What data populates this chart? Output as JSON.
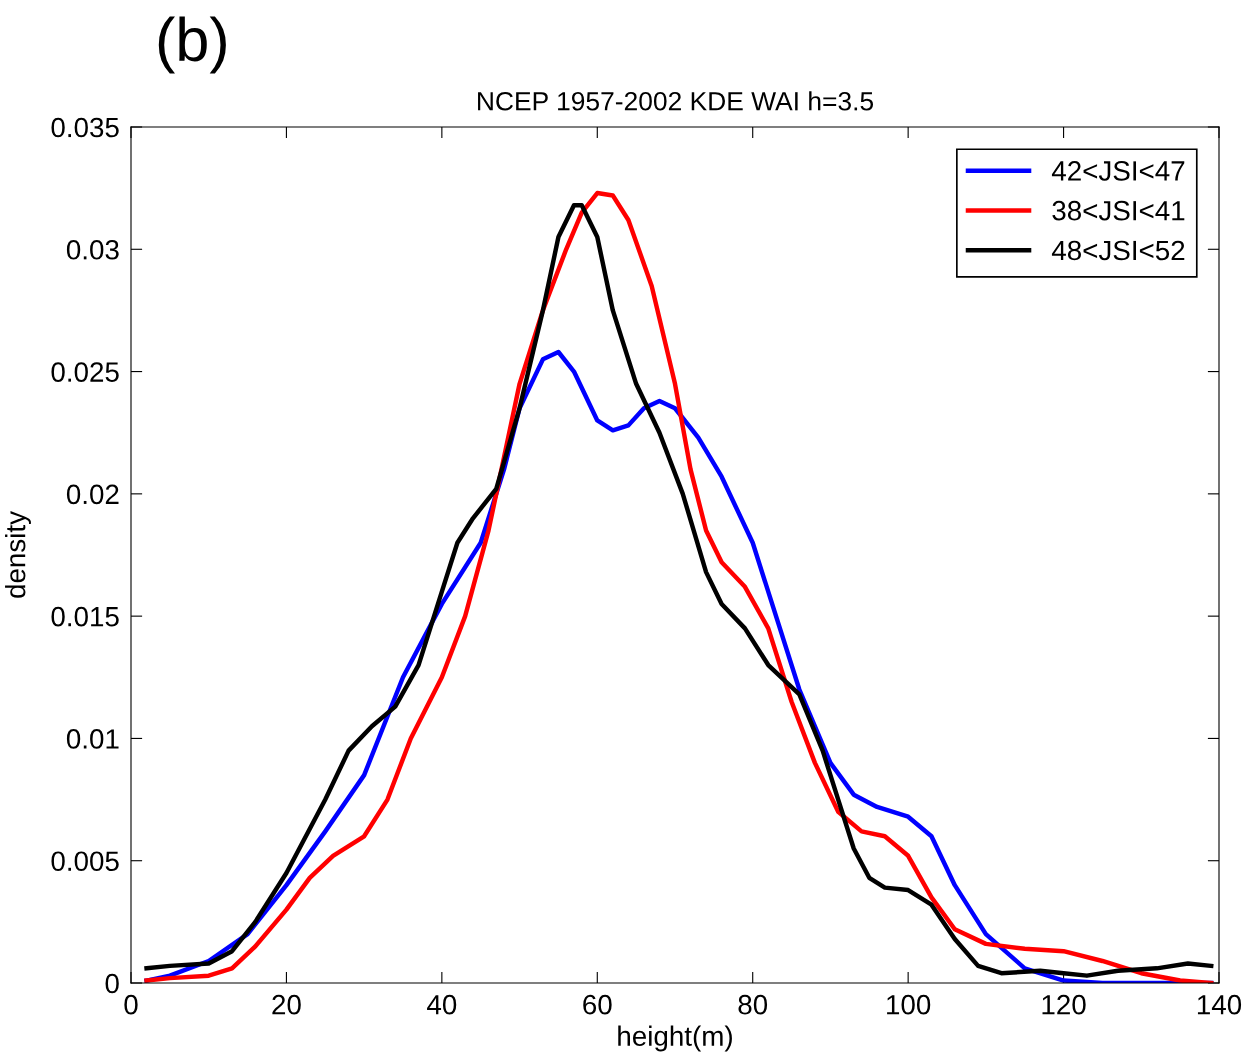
{
  "chart_data": {
    "type": "line",
    "title": "NCEP 1957-2002 KDE WAI h=3.5",
    "xlabel": "height(m)",
    "ylabel": "density",
    "annotations": [
      "(b)"
    ],
    "xlim": [
      0,
      140
    ],
    "xticks": [
      0,
      20,
      40,
      60,
      80,
      100,
      120,
      140
    ],
    "ylim": [
      0,
      0.035
    ],
    "yticks": [
      0,
      0.005,
      0.01,
      0.015,
      0.02,
      0.025,
      0.03,
      0.035
    ],
    "grid": false,
    "legend": "top right",
    "marker": "none",
    "line_style": "solid",
    "series": [
      {
        "name": "42<JSI<47",
        "color": "#0000ff",
        "x": [
          2,
          5,
          10,
          15,
          20,
          25,
          30,
          35,
          40,
          45,
          48,
          50,
          53,
          55,
          57,
          60,
          62,
          64,
          66,
          68,
          70,
          73,
          76,
          80,
          83,
          86,
          90,
          93,
          96,
          100,
          103,
          106,
          110,
          115,
          120,
          125,
          139
        ],
        "values": [
          0.0001,
          0.0003,
          0.0009,
          0.002,
          0.004,
          0.0062,
          0.0085,
          0.0125,
          0.0155,
          0.018,
          0.021,
          0.0235,
          0.0255,
          0.0258,
          0.025,
          0.023,
          0.0226,
          0.0228,
          0.0235,
          0.0238,
          0.0235,
          0.0223,
          0.0207,
          0.018,
          0.015,
          0.012,
          0.009,
          0.0077,
          0.0072,
          0.0068,
          0.006,
          0.004,
          0.002,
          0.0006,
          0.0001,
          0.0,
          0.0
        ]
      },
      {
        "name": "38<JSI<41",
        "color": "#ff0000",
        "x": [
          2,
          5,
          10,
          13,
          16,
          20,
          23,
          26,
          30,
          33,
          36,
          40,
          43,
          46,
          48,
          50,
          53,
          56,
          58,
          60,
          62,
          64,
          67,
          70,
          72,
          74,
          76,
          79,
          82,
          85,
          88,
          91,
          94,
          97,
          100,
          103,
          106,
          110,
          115,
          120,
          125,
          130,
          135,
          139
        ],
        "values": [
          0.0001,
          0.0002,
          0.0003,
          0.0006,
          0.0015,
          0.003,
          0.0043,
          0.0052,
          0.006,
          0.0075,
          0.01,
          0.0125,
          0.015,
          0.0185,
          0.0215,
          0.0245,
          0.0275,
          0.03,
          0.0315,
          0.0323,
          0.0322,
          0.0312,
          0.0285,
          0.0245,
          0.021,
          0.0185,
          0.0172,
          0.0162,
          0.0145,
          0.0115,
          0.009,
          0.007,
          0.0062,
          0.006,
          0.0052,
          0.0035,
          0.0022,
          0.0016,
          0.0014,
          0.0013,
          0.0009,
          0.0004,
          0.0001,
          0.0
        ]
      },
      {
        "name": "48<JSI<52",
        "color": "#000000",
        "x": [
          2,
          5,
          10,
          13,
          16,
          20,
          25,
          28,
          31,
          34,
          37,
          40,
          42,
          44,
          47,
          50,
          53,
          55,
          57,
          58,
          60,
          62,
          65,
          68,
          71,
          74,
          76,
          79,
          82,
          86,
          89,
          91,
          93,
          95,
          97,
          100,
          103,
          106,
          109,
          112,
          117,
          120,
          123,
          127,
          132,
          136,
          139
        ],
        "values": [
          0.0006,
          0.0007,
          0.0008,
          0.0013,
          0.0025,
          0.0045,
          0.0075,
          0.0095,
          0.0105,
          0.0113,
          0.013,
          0.016,
          0.018,
          0.019,
          0.0202,
          0.0235,
          0.0275,
          0.0305,
          0.0318,
          0.0318,
          0.0305,
          0.0275,
          0.0245,
          0.0225,
          0.02,
          0.0168,
          0.0155,
          0.0145,
          0.013,
          0.0118,
          0.0095,
          0.0075,
          0.0055,
          0.0043,
          0.0039,
          0.0038,
          0.0032,
          0.0018,
          0.0007,
          0.0004,
          0.0005,
          0.0004,
          0.0003,
          0.0005,
          0.0006,
          0.0008,
          0.0007
        ]
      }
    ]
  }
}
